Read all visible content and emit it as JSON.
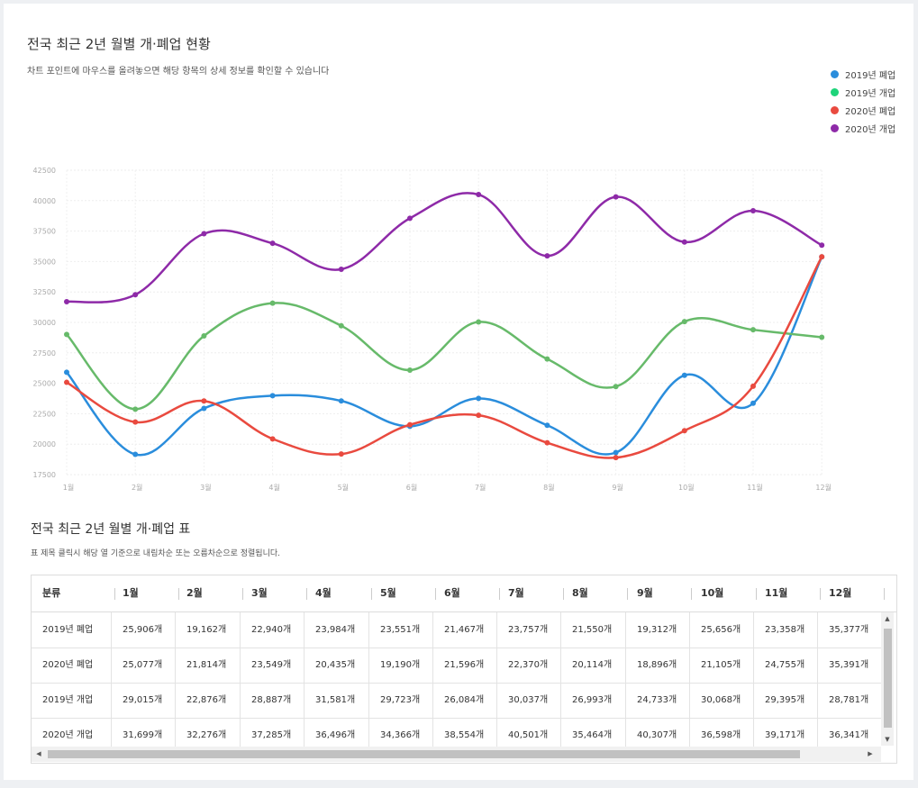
{
  "header": {
    "title": "전국 최근 2년 월별 개·폐업 현황",
    "subtitle": "차트 포인트에 마우스를 올려놓으면 해당 항목의 상세 정보를 확인할 수 있습니다"
  },
  "chart_data": {
    "type": "line",
    "title": "전국 최근 2년 월별 개·폐업 현황",
    "xlabel": "",
    "ylabel": "",
    "categories": [
      "1월",
      "2월",
      "3월",
      "4월",
      "5월",
      "6월",
      "7월",
      "8월",
      "9월",
      "10월",
      "11월",
      "12월"
    ],
    "ylim": [
      17500,
      42500
    ],
    "yticks": [
      "42500",
      "40000",
      "37500",
      "35000",
      "32500",
      "30000",
      "27500",
      "25000",
      "22500",
      "20000",
      "17500"
    ],
    "legend_position": "top-right",
    "series": [
      {
        "name": "2019년 폐업",
        "color": "#2a8ddc",
        "values": [
          25906,
          19162,
          22940,
          23984,
          23551,
          21467,
          23757,
          21550,
          19312,
          25656,
          23358,
          35377
        ]
      },
      {
        "name": "2019년 개업",
        "color": "#1ed47a",
        "line_color": "#67ba6a",
        "values": [
          29015,
          22876,
          28887,
          31581,
          29723,
          26084,
          30037,
          26993,
          24733,
          30068,
          29395,
          28781
        ]
      },
      {
        "name": "2020년 폐업",
        "color": "#e94a3f",
        "values": [
          25077,
          21814,
          23549,
          20435,
          19190,
          21596,
          22370,
          20114,
          18896,
          21105,
          24755,
          35391
        ]
      },
      {
        "name": "2020년 개업",
        "color": "#8e2aa8",
        "values": [
          31699,
          32276,
          37285,
          36496,
          34366,
          38554,
          40501,
          35464,
          40307,
          36598,
          39171,
          36341
        ]
      }
    ]
  },
  "table": {
    "title": "전국 최근 2년 월별 개·폐업 표",
    "subtitle": "표 제목 클릭시 해당 열 기준으로 내림차순 또는 오름차순으로 정렬됩니다.",
    "headers": [
      "분류",
      "1월",
      "2월",
      "3월",
      "4월",
      "5월",
      "6월",
      "7월",
      "8월",
      "9월",
      "10월",
      "11월",
      "12월"
    ],
    "rows": [
      [
        "2019년 폐업",
        "25,906개",
        "19,162개",
        "22,940개",
        "23,984개",
        "23,551개",
        "21,467개",
        "23,757개",
        "21,550개",
        "19,312개",
        "25,656개",
        "23,358개",
        "35,377개"
      ],
      [
        "2020년 폐업",
        "25,077개",
        "21,814개",
        "23,549개",
        "20,435개",
        "19,190개",
        "21,596개",
        "22,370개",
        "20,114개",
        "18,896개",
        "21,105개",
        "24,755개",
        "35,391개"
      ],
      [
        "2019년 개업",
        "29,015개",
        "22,876개",
        "28,887개",
        "31,581개",
        "29,723개",
        "26,084개",
        "30,037개",
        "26,993개",
        "24,733개",
        "30,068개",
        "29,395개",
        "28,781개"
      ],
      [
        "2020년 개업",
        "31,699개",
        "32,276개",
        "37,285개",
        "36,496개",
        "34,366개",
        "38,554개",
        "40,501개",
        "35,464개",
        "40,307개",
        "36,598개",
        "39,171개",
        "36,341개"
      ]
    ]
  }
}
